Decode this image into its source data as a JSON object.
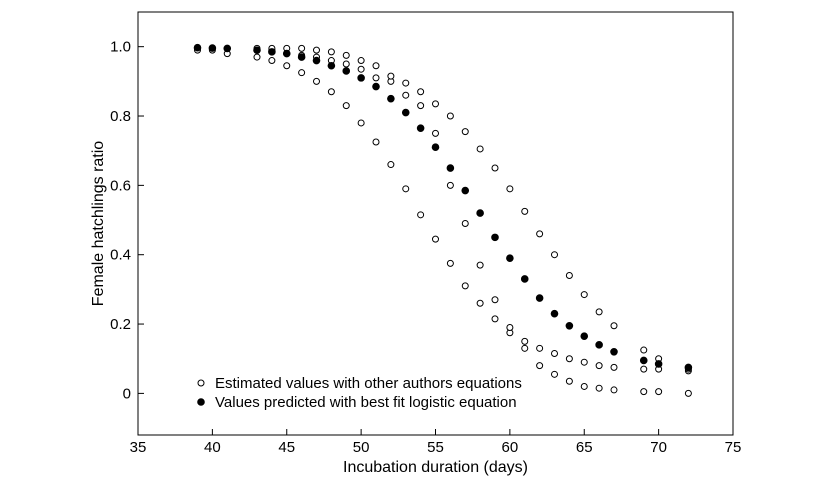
{
  "chart_data": {
    "type": "scatter",
    "xlabel": "Incubation duration (days)",
    "ylabel": "Female hatchlings ratio",
    "xlim": [
      35,
      75
    ],
    "ylim": [
      -0.12,
      1.1
    ],
    "xticks": [
      35,
      40,
      45,
      50,
      55,
      60,
      65,
      70,
      75
    ],
    "xtick_labels": [
      "35",
      "40",
      "45",
      "50",
      "55",
      "60",
      "65",
      "70",
      "75"
    ],
    "yticks": [
      0,
      0.2,
      0.4,
      0.6,
      0.8,
      1.0
    ],
    "ytick_labels": [
      "0",
      "0.2",
      "0.4",
      "0.6",
      "0.8",
      "1.0"
    ],
    "grid": false,
    "legend_position": "bottom-left",
    "series": [
      {
        "name": "Estimated values with other authors equations",
        "marker": "open-circle",
        "color": "#000000",
        "points": [
          [
            39,
            0.99
          ],
          [
            40,
            0.99
          ],
          [
            41,
            0.98
          ],
          [
            43,
            0.97
          ],
          [
            44,
            0.96
          ],
          [
            45,
            0.945
          ],
          [
            46,
            0.925
          ],
          [
            47,
            0.9
          ],
          [
            48,
            0.87
          ],
          [
            49,
            0.83
          ],
          [
            50,
            0.78
          ],
          [
            51,
            0.725
          ],
          [
            52,
            0.66
          ],
          [
            53,
            0.59
          ],
          [
            54,
            0.515
          ],
          [
            55,
            0.445
          ],
          [
            56,
            0.375
          ],
          [
            57,
            0.31
          ],
          [
            58,
            0.26
          ],
          [
            59,
            0.215
          ],
          [
            60,
            0.175
          ],
          [
            61,
            0.13
          ],
          [
            62,
            0.08
          ],
          [
            63,
            0.055
          ],
          [
            64,
            0.035
          ],
          [
            65,
            0.02
          ],
          [
            66,
            0.015
          ],
          [
            67,
            0.01
          ],
          [
            69,
            0.005
          ],
          [
            70,
            0.005
          ],
          [
            72,
            0.0
          ],
          [
            43,
            0.99
          ],
          [
            44,
            0.99
          ],
          [
            45,
            0.98
          ],
          [
            46,
            0.975
          ],
          [
            47,
            0.97
          ],
          [
            48,
            0.96
          ],
          [
            49,
            0.95
          ],
          [
            50,
            0.935
          ],
          [
            51,
            0.91
          ],
          [
            52,
            0.9
          ],
          [
            53,
            0.86
          ],
          [
            54,
            0.83
          ],
          [
            55,
            0.75
          ],
          [
            56,
            0.6
          ],
          [
            57,
            0.49
          ],
          [
            58,
            0.37
          ],
          [
            59,
            0.27
          ],
          [
            60,
            0.19
          ],
          [
            61,
            0.15
          ],
          [
            62,
            0.13
          ],
          [
            63,
            0.115
          ],
          [
            64,
            0.1
          ],
          [
            65,
            0.09
          ],
          [
            66,
            0.08
          ],
          [
            67,
            0.075
          ],
          [
            69,
            0.07
          ],
          [
            70,
            0.07
          ],
          [
            72,
            0.065
          ],
          [
            43,
            0.995
          ],
          [
            44,
            0.995
          ],
          [
            45,
            0.995
          ],
          [
            46,
            0.995
          ],
          [
            47,
            0.99
          ],
          [
            48,
            0.985
          ],
          [
            49,
            0.975
          ],
          [
            50,
            0.96
          ],
          [
            51,
            0.945
          ],
          [
            52,
            0.915
          ],
          [
            53,
            0.895
          ],
          [
            54,
            0.87
          ],
          [
            55,
            0.835
          ],
          [
            56,
            0.8
          ],
          [
            57,
            0.755
          ],
          [
            58,
            0.705
          ],
          [
            59,
            0.65
          ],
          [
            60,
            0.59
          ],
          [
            61,
            0.525
          ],
          [
            62,
            0.46
          ],
          [
            63,
            0.4
          ],
          [
            64,
            0.34
          ],
          [
            65,
            0.285
          ],
          [
            66,
            0.235
          ],
          [
            67,
            0.195
          ],
          [
            69,
            0.125
          ],
          [
            70,
            0.1
          ],
          [
            72,
            0.07
          ]
        ]
      },
      {
        "name": "Values predicted with best fit logistic equation",
        "marker": "filled-circle",
        "color": "#000000",
        "points": [
          [
            39,
            0.997
          ],
          [
            40,
            0.996
          ],
          [
            41,
            0.995
          ],
          [
            43,
            0.99
          ],
          [
            44,
            0.985
          ],
          [
            45,
            0.98
          ],
          [
            46,
            0.97
          ],
          [
            47,
            0.96
          ],
          [
            48,
            0.945
          ],
          [
            49,
            0.93
          ],
          [
            50,
            0.91
          ],
          [
            51,
            0.885
          ],
          [
            52,
            0.85
          ],
          [
            53,
            0.81
          ],
          [
            54,
            0.765
          ],
          [
            55,
            0.71
          ],
          [
            56,
            0.65
          ],
          [
            57,
            0.585
          ],
          [
            58,
            0.52
          ],
          [
            59,
            0.45
          ],
          [
            60,
            0.39
          ],
          [
            61,
            0.33
          ],
          [
            62,
            0.275
          ],
          [
            63,
            0.23
          ],
          [
            64,
            0.195
          ],
          [
            65,
            0.165
          ],
          [
            66,
            0.14
          ],
          [
            67,
            0.12
          ],
          [
            69,
            0.095
          ],
          [
            70,
            0.085
          ],
          [
            72,
            0.075
          ]
        ]
      }
    ]
  }
}
